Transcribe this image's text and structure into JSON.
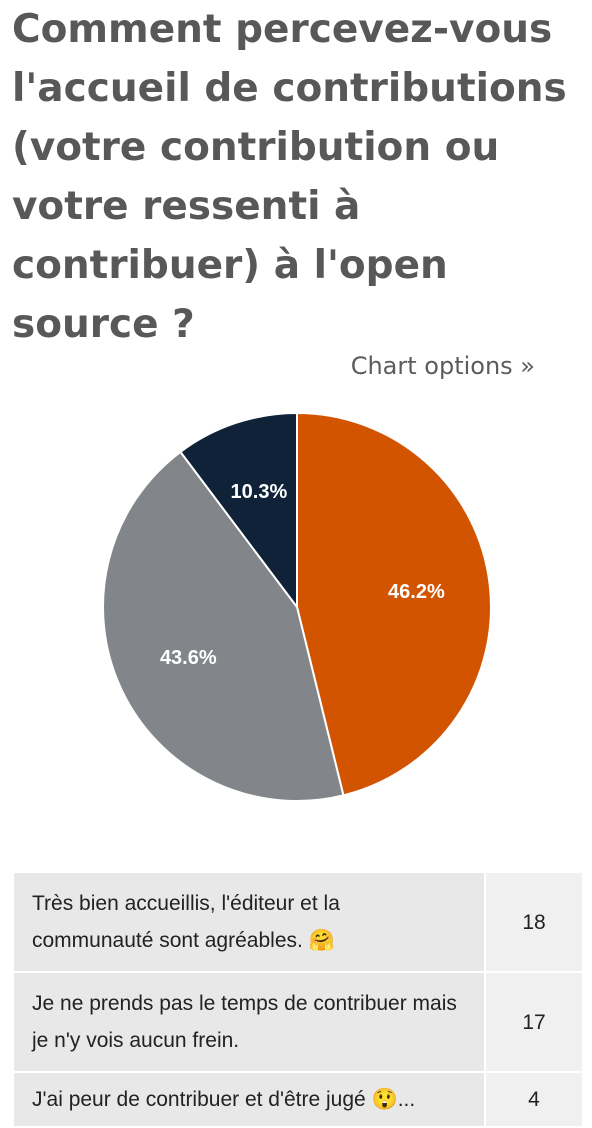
{
  "question": {
    "title": "Comment percevez-vous l'accueil de contributions (votre contribution ou votre ressenti à contribuer) à l'open source ?"
  },
  "chart_options_label": "Chart options »",
  "chart_data": {
    "type": "pie",
    "title": "",
    "slices": [
      {
        "label": "Très bien accueillis, l'éditeur et la communauté sont agréables. 🤗",
        "value": 18,
        "percent_label": "46.2%",
        "color": "#d35400"
      },
      {
        "label": "Je ne prends pas le temps de contribuer mais je n'y vois aucun frein.",
        "value": 17,
        "percent_label": "43.6%",
        "color": "#82868a"
      },
      {
        "label": "J'ai peur de contribuer et d'être jugé 😲...",
        "value": 4,
        "percent_label": "10.3%",
        "color": "#0f2238"
      }
    ]
  },
  "results": [
    {
      "answer": "Très bien accueillis, l'éditeur et la communauté sont agréables. 🤗",
      "count": "18"
    },
    {
      "answer": "Je ne prends pas le temps de contribuer mais je n'y vois aucun frein.",
      "count": "17"
    },
    {
      "answer": "J'ai peur de contribuer et d'être jugé 😲...",
      "count": "4"
    }
  ]
}
